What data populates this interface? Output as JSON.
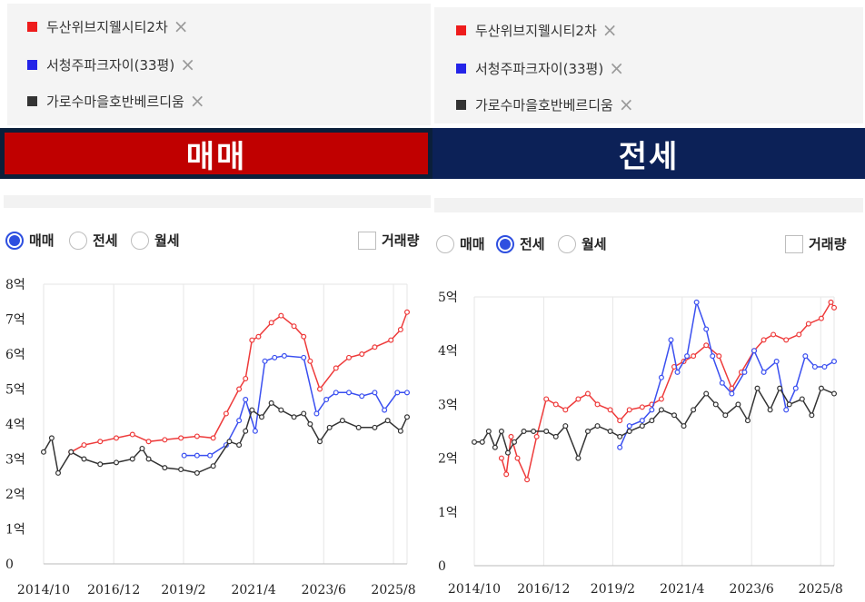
{
  "colors": {
    "series_red": "#ee3a3a",
    "series_blue": "#3a4ff0",
    "series_black": "#333333",
    "banner_sale": "#c00000",
    "banner_jeonse": "#0c2157",
    "banner_border": "#0b1f3a"
  },
  "panels": [
    {
      "legend": [
        {
          "name": "두산위브지웰시티2차",
          "color": "#ee1c1c"
        },
        {
          "name": "서청주파크자이(33평)",
          "color": "#2424e8"
        },
        {
          "name": "가로수마을호반베르디움",
          "color": "#333333"
        }
      ],
      "remove_icon": "close-icon",
      "banner": "매매",
      "radios": [
        {
          "label": "매매",
          "selected": true
        },
        {
          "label": "전세",
          "selected": false
        },
        {
          "label": "월세",
          "selected": false
        }
      ],
      "checkbox_label": "거래량"
    },
    {
      "legend": [
        {
          "name": "두산위브지웰시티2차",
          "color": "#ee1c1c"
        },
        {
          "name": "서청주파크자이(33평)",
          "color": "#2424e8"
        },
        {
          "name": "가로수마을호반베르디움",
          "color": "#333333"
        }
      ],
      "remove_icon": "close-icon",
      "banner": "전세",
      "radios": [
        {
          "label": "매매",
          "selected": false
        },
        {
          "label": "전세",
          "selected": true
        },
        {
          "label": "월세",
          "selected": false
        }
      ],
      "checkbox_label": "거래량"
    }
  ],
  "chart_data": [
    {
      "type": "line",
      "title": "매매",
      "ylim": [
        0,
        8
      ],
      "y_ticks": [
        0,
        1,
        2,
        3,
        4,
        5,
        6,
        7,
        8
      ],
      "y_tick_labels": [
        "0",
        "1억",
        "2억",
        "3억",
        "4억",
        "5억",
        "6억",
        "7억",
        "8억"
      ],
      "x_ticks": [
        2014.75,
        2016.92,
        2019.08,
        2021.25,
        2023.42,
        2025.58
      ],
      "x_tick_labels": [
        "2014/10",
        "2016/12",
        "2019/2",
        "2021/4",
        "2023/6",
        "2025/8"
      ],
      "grid": "x",
      "series": [
        {
          "name": "두산위브지웰시티2차",
          "color": "#ee3a3a",
          "x": [
            2015.6,
            2016.0,
            2016.5,
            2017.0,
            2017.5,
            2018.0,
            2018.5,
            2019.0,
            2019.5,
            2020.0,
            2020.4,
            2020.8,
            2021.0,
            2021.2,
            2021.4,
            2021.8,
            2022.1,
            2022.5,
            2022.8,
            2023.0,
            2023.3,
            2023.8,
            2024.2,
            2024.6,
            2025.0,
            2025.5,
            2025.8,
            2026.0
          ],
          "y": [
            3.2,
            3.4,
            3.5,
            3.6,
            3.7,
            3.5,
            3.55,
            3.6,
            3.65,
            3.6,
            4.3,
            5.0,
            5.3,
            6.4,
            6.5,
            6.9,
            7.1,
            6.8,
            6.5,
            5.8,
            5.0,
            5.6,
            5.9,
            6.0,
            6.2,
            6.4,
            6.7,
            7.2
          ]
        },
        {
          "name": "서청주파크자이(33평)",
          "color": "#3a4ff0",
          "x": [
            2019.1,
            2019.5,
            2019.9,
            2020.4,
            2020.8,
            2021.0,
            2021.3,
            2021.6,
            2021.9,
            2022.2,
            2022.8,
            2023.2,
            2023.5,
            2023.8,
            2024.2,
            2024.6,
            2025.0,
            2025.3,
            2025.7,
            2026.0
          ],
          "y": [
            3.1,
            3.1,
            3.1,
            3.4,
            4.1,
            4.7,
            3.8,
            5.8,
            5.9,
            5.95,
            5.9,
            4.3,
            4.7,
            4.9,
            4.9,
            4.8,
            4.9,
            4.4,
            4.9,
            4.9
          ]
        },
        {
          "name": "가로수마을호반베르디움",
          "color": "#333333",
          "x": [
            2014.75,
            2015.0,
            2015.2,
            2015.6,
            2016.0,
            2016.5,
            2017.0,
            2017.5,
            2017.8,
            2018.0,
            2018.5,
            2019.0,
            2019.5,
            2020.0,
            2020.5,
            2020.8,
            2021.0,
            2021.2,
            2021.5,
            2021.8,
            2022.1,
            2022.5,
            2022.8,
            2023.0,
            2023.3,
            2023.6,
            2024.0,
            2024.5,
            2025.0,
            2025.4,
            2025.8,
            2026.0
          ],
          "y": [
            3.2,
            3.6,
            2.6,
            3.2,
            3.0,
            2.85,
            2.9,
            3.0,
            3.3,
            3.0,
            2.75,
            2.7,
            2.6,
            2.8,
            3.5,
            3.4,
            3.8,
            4.4,
            4.2,
            4.6,
            4.4,
            4.2,
            4.3,
            4.0,
            3.5,
            3.9,
            4.1,
            3.9,
            3.9,
            4.1,
            3.8,
            4.2
          ]
        }
      ]
    },
    {
      "type": "line",
      "title": "전세",
      "ylim": [
        0,
        5
      ],
      "y_ticks": [
        0,
        1,
        2,
        3,
        4,
        5
      ],
      "y_tick_labels": [
        "0",
        "1억",
        "2억",
        "3억",
        "4억",
        "5억"
      ],
      "x_ticks": [
        2014.75,
        2016.92,
        2019.08,
        2021.25,
        2023.42,
        2025.58
      ],
      "x_tick_labels": [
        "2014/10",
        "2016/12",
        "2019/2",
        "2021/4",
        "2023/6",
        "2025/8"
      ],
      "grid": "x",
      "series": [
        {
          "name": "두산위브지웰시티2차",
          "color": "#ee3a3a",
          "x": [
            2015.6,
            2015.75,
            2015.9,
            2016.1,
            2016.4,
            2016.7,
            2017.0,
            2017.3,
            2017.6,
            2018.0,
            2018.3,
            2018.6,
            2019.0,
            2019.3,
            2019.6,
            2020.0,
            2020.3,
            2020.6,
            2021.0,
            2021.3,
            2021.6,
            2022.0,
            2022.4,
            2022.8,
            2023.1,
            2023.5,
            2023.8,
            2024.1,
            2024.5,
            2024.9,
            2025.2,
            2025.6,
            2025.9,
            2026.0
          ],
          "y": [
            2.0,
            1.7,
            2.4,
            2.0,
            1.6,
            2.4,
            3.1,
            3.0,
            2.9,
            3.1,
            3.2,
            3.0,
            2.9,
            2.7,
            2.9,
            2.95,
            3.0,
            3.1,
            3.7,
            3.8,
            3.9,
            4.1,
            3.9,
            3.3,
            3.6,
            4.0,
            4.2,
            4.3,
            4.2,
            4.3,
            4.5,
            4.6,
            4.9,
            4.8
          ]
        },
        {
          "name": "서청주파크자이(33평)",
          "color": "#3a4ff0",
          "x": [
            2019.3,
            2019.6,
            2020.0,
            2020.3,
            2020.6,
            2020.9,
            2021.1,
            2021.4,
            2021.7,
            2022.0,
            2022.2,
            2022.5,
            2022.8,
            2023.2,
            2023.5,
            2023.8,
            2024.2,
            2024.5,
            2024.8,
            2025.1,
            2025.4,
            2025.7,
            2026.0
          ],
          "y": [
            2.2,
            2.6,
            2.7,
            2.9,
            3.5,
            4.2,
            3.6,
            3.9,
            4.9,
            4.4,
            3.9,
            3.4,
            3.2,
            3.6,
            4.0,
            3.6,
            3.8,
            2.9,
            3.3,
            3.9,
            3.7,
            3.7,
            3.8
          ]
        },
        {
          "name": "가로수마을호반베르디움",
          "color": "#333333",
          "x": [
            2014.75,
            2015.0,
            2015.2,
            2015.4,
            2015.6,
            2015.8,
            2016.0,
            2016.3,
            2016.6,
            2017.0,
            2017.3,
            2017.6,
            2018.0,
            2018.3,
            2018.6,
            2019.0,
            2019.3,
            2019.6,
            2020.0,
            2020.3,
            2020.6,
            2021.0,
            2021.3,
            2021.6,
            2022.0,
            2022.3,
            2022.6,
            2023.0,
            2023.3,
            2023.6,
            2024.0,
            2024.3,
            2024.6,
            2025.0,
            2025.3,
            2025.6,
            2026.0
          ],
          "y": [
            2.3,
            2.3,
            2.5,
            2.2,
            2.5,
            2.1,
            2.3,
            2.5,
            2.5,
            2.5,
            2.4,
            2.6,
            2.0,
            2.5,
            2.6,
            2.5,
            2.4,
            2.5,
            2.6,
            2.7,
            2.9,
            2.8,
            2.6,
            2.9,
            3.2,
            3.0,
            2.8,
            3.0,
            2.7,
            3.3,
            2.9,
            3.3,
            3.0,
            3.1,
            2.8,
            3.3,
            3.2
          ]
        }
      ]
    }
  ]
}
